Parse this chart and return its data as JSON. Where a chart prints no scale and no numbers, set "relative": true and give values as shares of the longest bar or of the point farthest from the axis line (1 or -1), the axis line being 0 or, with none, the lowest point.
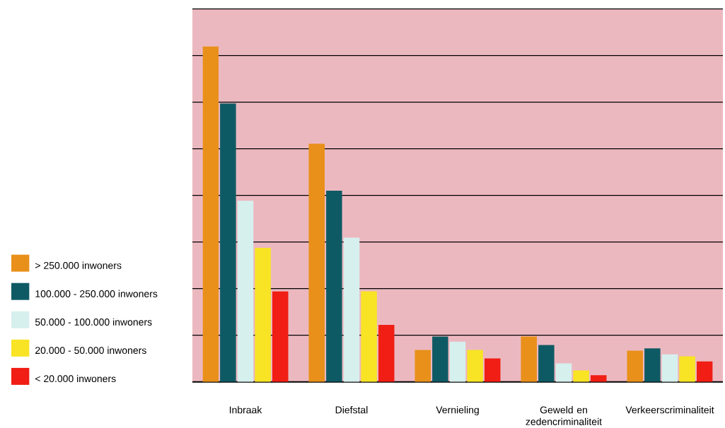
{
  "chart_data": {
    "type": "bar",
    "relative": true,
    "grid": "y",
    "legend": "left",
    "categories": [
      "Inbraak",
      "Diefstal",
      "Vernieling",
      "Geweld en zedencriminaliteit",
      "Verkeerscriminaliteit"
    ],
    "series": [
      {
        "name": "> 250.000 inwoners",
        "color": "#e8901a",
        "values": [
          1,
          0.71,
          0.095,
          0.135,
          0.093
        ]
      },
      {
        "name": "100.000 - 250.000 inwoners",
        "color": "#0e5a64",
        "values": [
          0.83,
          0.57,
          0.135,
          0.11,
          0.1
        ]
      },
      {
        "name": "50.000 - 100.000 inwoners",
        "color": "#d6f0ee",
        "values": [
          0.54,
          0.43,
          0.12,
          0.055,
          0.082
        ]
      },
      {
        "name": "20.000 - 50.000 inwoners",
        "color": "#f8e424",
        "values": [
          0.4,
          0.27,
          0.095,
          0.034,
          0.076
        ]
      },
      {
        "name": "< 20.000 inwoners",
        "color": "#f01e14",
        "values": [
          0.27,
          0.17,
          0.07,
          0.02,
          0.061
        ]
      }
    ]
  }
}
